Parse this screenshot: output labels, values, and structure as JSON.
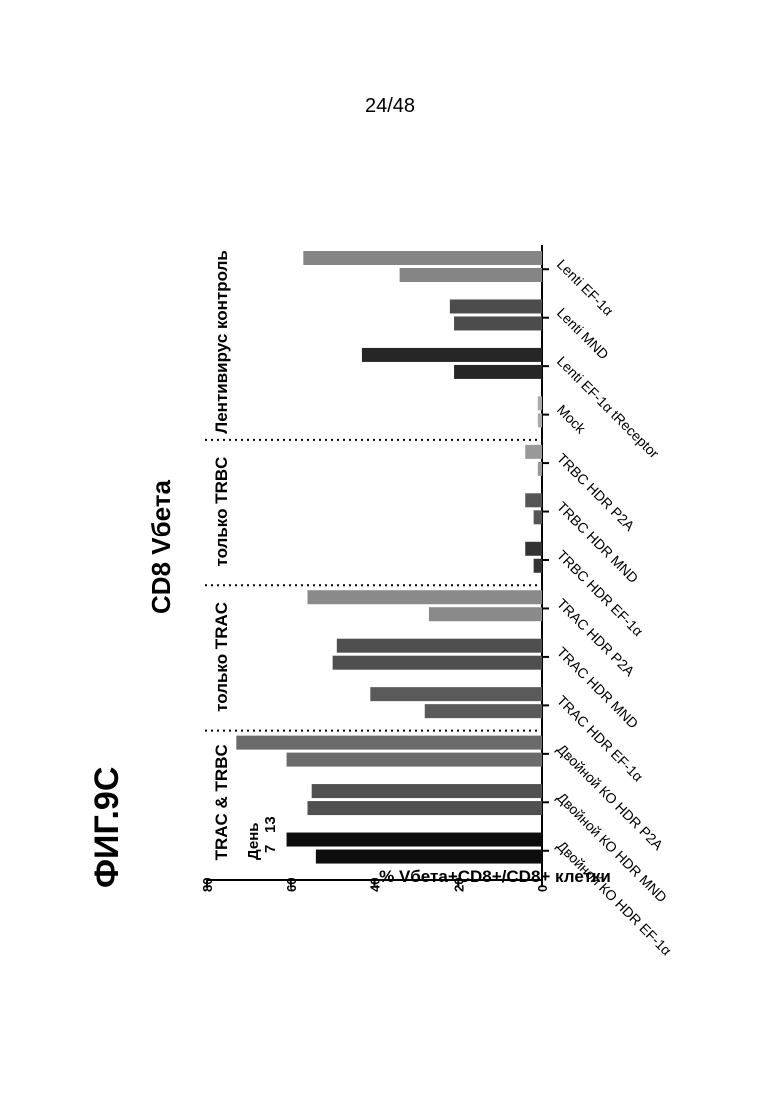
{
  "page": {
    "number": "24/48",
    "figure_label": "ФИГ.9С"
  },
  "chart_data": {
    "type": "bar",
    "title": "CD8 Vбета",
    "ylabel": "% Vбета+CD8+/CD8+ клетки",
    "xlabel": "",
    "ylim": [
      0,
      80
    ],
    "yticks": [
      0,
      20,
      40,
      60,
      80
    ],
    "categories": [
      "Двойной КО HDR EF-1α",
      "Двойной КО HDR MND",
      "Двойной КО HDR P2A",
      "TRAC HDR EF-1α",
      "TRAC HDR MND",
      "TRAC HDR P2A",
      "TRBC HDR EF-1α",
      "TRBC HDR MND",
      "TRBC HDR P2A",
      "Mock",
      "Lenti EF-1α tReceptor",
      "Lenti MND",
      "Lenti EF-1α"
    ],
    "legend": {
      "title": "День",
      "entries": [
        "7",
        "13"
      ]
    },
    "series": [
      {
        "name": "7",
        "values": [
          54,
          56,
          61,
          28,
          50,
          27,
          2,
          2,
          1,
          1,
          21,
          21,
          34
        ]
      },
      {
        "name": "13",
        "values": [
          61,
          55,
          73,
          41,
          49,
          56,
          4,
          4,
          4,
          1,
          43,
          22,
          57
        ]
      }
    ],
    "bar_colors": [
      "#0d0d0d",
      "#505050",
      "#6b6b6b",
      "#5a5a5a",
      "#4f4f4f",
      "#8a8a8a",
      "#333333",
      "#555555",
      "#999999",
      "#aaaaaa",
      "#262626",
      "#4c4c4c",
      "#858585"
    ],
    "groups": [
      {
        "label": "TRAC & TRBC",
        "start": 0,
        "end": 2
      },
      {
        "label": "только TRAC",
        "start": 3,
        "end": 5
      },
      {
        "label": "только TRBC",
        "start": 6,
        "end": 8
      },
      {
        "label": "Лентивирус контроль",
        "start": 9,
        "end": 12
      }
    ],
    "grid": false
  }
}
